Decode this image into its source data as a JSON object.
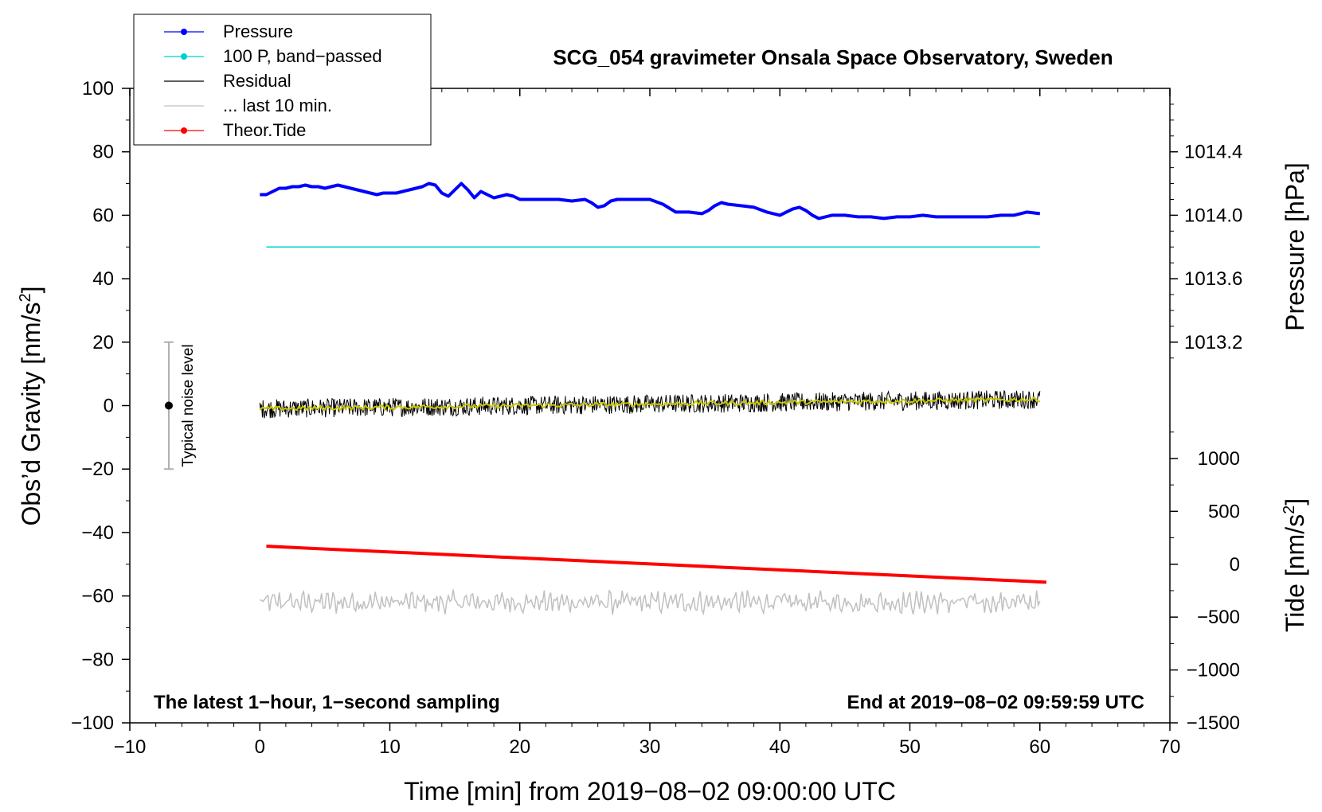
{
  "chart_data": {
    "type": "line",
    "title": "SCG_054 gravimeter Onsala Space Observatory, Sweden",
    "xlabel": "Time [min] from 2019−08−02 09:00:00 UTC",
    "ylabel": "Obs’d Gravity [nm/s²]",
    "ylabel_parts": [
      "Obs’d Gravity [nm/s",
      "2",
      "]"
    ],
    "y2label": "Pressure [hPa]",
    "y3label": "Tide [nm/s²]",
    "y3label_parts": [
      "Tide [nm/s",
      "2",
      "]"
    ],
    "xlim": [
      -10,
      70
    ],
    "ylim": [
      -100,
      100
    ],
    "x_ticks": [
      -10,
      0,
      10,
      20,
      30,
      40,
      50,
      60,
      70
    ],
    "x_tick_labels": [
      "−10",
      "0",
      "10",
      "20",
      "30",
      "40",
      "50",
      "60",
      "70"
    ],
    "y_ticks": [
      -100,
      -80,
      -60,
      -40,
      -20,
      0,
      20,
      40,
      60,
      80,
      100
    ],
    "y_tick_labels": [
      "−100",
      "−80",
      "−60",
      "−40",
      "−20",
      "0",
      "20",
      "40",
      "60",
      "80",
      "100"
    ],
    "pressure_axis": {
      "ticks": [
        1013.2,
        1013.6,
        1014.0,
        1014.4
      ],
      "tick_labels": [
        "1013.2",
        "1013.6",
        "1014.0",
        "1014.4"
      ],
      "gravity_at_1014": 60,
      "gravity_per_hpa": 50
    },
    "tide_axis": {
      "ticks": [
        -1500,
        -1000,
        -500,
        0,
        500,
        1000
      ],
      "tick_labels": [
        "−1500",
        "−1000",
        "−500",
        "0",
        "500",
        "1000"
      ],
      "gravity_at_zero": -50,
      "gravity_per_unit": 0.03333
    },
    "legend": [
      {
        "label": "Pressure",
        "color": "#0000ff",
        "marker": true
      },
      {
        "label": "100 P, band−passed",
        "color": "#00d0d0",
        "marker": true
      },
      {
        "label": "Residual",
        "color": "#000000",
        "marker": false
      },
      {
        "label": "... last 10 min.",
        "color": "#c0c0c0",
        "marker": false
      },
      {
        "label": "Theor.Tide",
        "color": "#ff0000",
        "marker": true
      }
    ],
    "annotations": {
      "left": "The latest 1−hour, 1−second sampling",
      "right": "End at 2019−08−02 09:59:59 UTC",
      "noise_label": "Typical noise level"
    },
    "noise_bar": {
      "x": -7,
      "y": 0,
      "low": -20,
      "high": 20
    },
    "series": [
      {
        "name": "Pressure",
        "color": "#0000ff",
        "unit": "hPa",
        "x": [
          0,
          0.5,
          1,
          1.5,
          2,
          2.5,
          3,
          3.5,
          4,
          4.5,
          5,
          5.5,
          6,
          6.5,
          7,
          7.5,
          8,
          8.5,
          9,
          9.5,
          10,
          10.5,
          11,
          11.5,
          12,
          12.5,
          13,
          13.5,
          14,
          14.5,
          15,
          15.5,
          16,
          16.5,
          17,
          17.5,
          18,
          18.5,
          19,
          19.5,
          20,
          21,
          22,
          23,
          24,
          25,
          25.5,
          26,
          26.5,
          27,
          27.5,
          28,
          29,
          30,
          31,
          32,
          33,
          34,
          34.5,
          35,
          35.5,
          36,
          37,
          38,
          39,
          40,
          40.5,
          41,
          41.5,
          42,
          42.5,
          43,
          43.5,
          44,
          45,
          46,
          47,
          48,
          49,
          50,
          51,
          52,
          53,
          54,
          55,
          56,
          57,
          58,
          59,
          60
        ],
        "values": [
          1014.13,
          1014.13,
          1014.15,
          1014.17,
          1014.17,
          1014.18,
          1014.18,
          1014.19,
          1014.18,
          1014.18,
          1014.17,
          1014.18,
          1014.19,
          1014.18,
          1014.17,
          1014.16,
          1014.15,
          1014.14,
          1014.13,
          1014.14,
          1014.14,
          1014.14,
          1014.15,
          1014.16,
          1014.17,
          1014.18,
          1014.2,
          1014.19,
          1014.14,
          1014.12,
          1014.16,
          1014.2,
          1014.16,
          1014.11,
          1014.15,
          1014.13,
          1014.11,
          1014.12,
          1014.13,
          1014.12,
          1014.1,
          1014.1,
          1014.1,
          1014.1,
          1014.09,
          1014.1,
          1014.08,
          1014.05,
          1014.06,
          1014.09,
          1014.1,
          1014.1,
          1014.1,
          1014.1,
          1014.07,
          1014.02,
          1014.02,
          1014.01,
          1014.03,
          1014.06,
          1014.08,
          1014.07,
          1014.06,
          1014.05,
          1014.02,
          1014.0,
          1014.02,
          1014.04,
          1014.05,
          1014.03,
          1014.0,
          1013.98,
          1013.99,
          1014.0,
          1014.0,
          1013.99,
          1013.99,
          1013.98,
          1013.99,
          1013.99,
          1014.0,
          1013.99,
          1013.99,
          1013.99,
          1013.99,
          1013.99,
          1014.0,
          1014.0,
          1014.02,
          1014.01
        ]
      },
      {
        "name": "100 P, band−passed",
        "color": "#00d0d0",
        "x": [
          0.5,
          60
        ],
        "values": [
          50,
          50
        ]
      },
      {
        "name": "Residual",
        "color": "#000000",
        "x_range": [
          0,
          60
        ],
        "trend": [
          -1,
          2
        ],
        "noise_amplitude": 3
      },
      {
        "name": "Residual smoothed",
        "color": "#c8c800",
        "x_range": [
          0,
          60
        ],
        "trend": [
          -1,
          2
        ]
      },
      {
        "name": "... last 10 min.",
        "color": "#c0c0c0",
        "x_range": [
          0,
          60
        ],
        "center": -62
      },
      {
        "name": "Theor.Tide",
        "color": "#ff0000",
        "unit": "nm/s²",
        "x": [
          0.5,
          60.5
        ],
        "values": [
          170,
          -170
        ]
      }
    ]
  }
}
